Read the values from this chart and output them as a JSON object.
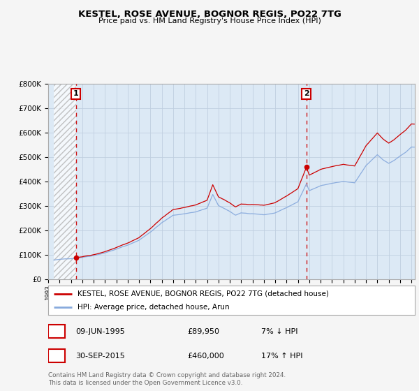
{
  "title": "KESTEL, ROSE AVENUE, BOGNOR REGIS, PO22 7TG",
  "subtitle": "Price paid vs. HM Land Registry's House Price Index (HPI)",
  "legend_entry1": "KESTEL, ROSE AVENUE, BOGNOR REGIS, PO22 7TG (detached house)",
  "legend_entry2": "HPI: Average price, detached house, Arun",
  "annotation1_date": "09-JUN-1995",
  "annotation1_price": "£89,950",
  "annotation1_hpi": "7% ↓ HPI",
  "annotation2_date": "30-SEP-2015",
  "annotation2_price": "£460,000",
  "annotation2_hpi": "17% ↑ HPI",
  "footnote": "Contains HM Land Registry data © Crown copyright and database right 2024.\nThis data is licensed under the Open Government Licence v3.0.",
  "sale1_year": 1995.44,
  "sale1_price": 89950,
  "sale2_year": 2015.75,
  "sale2_price": 460000,
  "ylim": [
    0,
    800000
  ],
  "xlim_start": 1993.5,
  "xlim_end": 2025.3,
  "sale_color": "#cc0000",
  "hpi_color": "#88aadd",
  "background_color": "#dce9f5",
  "grid_color": "#c0cfe0",
  "footnote_color": "#666666"
}
